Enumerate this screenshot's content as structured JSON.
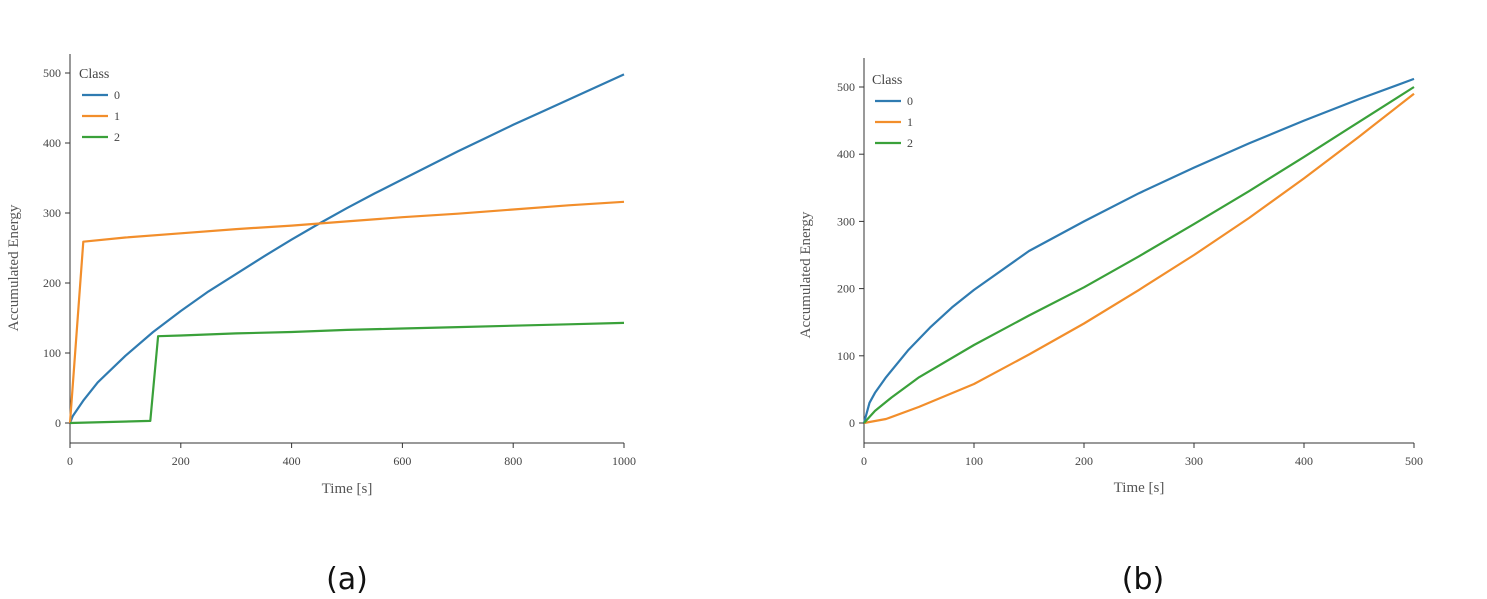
{
  "colors": {
    "class_0": "#2f7bb1",
    "class_1": "#f28e2b",
    "class_2": "#3aa13a"
  },
  "chart_data": [
    {
      "panel_label": "(a)",
      "type": "line",
      "xlabel": "Time [s]",
      "ylabel": "Accumulated Energy",
      "xlim": [
        0,
        1000
      ],
      "ylim": [
        0,
        500
      ],
      "xticks": [
        0,
        200,
        400,
        600,
        800,
        1000
      ],
      "yticks": [
        0,
        100,
        200,
        300,
        400,
        500
      ],
      "legend_title": "Class",
      "legend_position": "top-left",
      "series": [
        {
          "name": "0",
          "color": "#2f7bb1",
          "x": [
            0,
            5,
            25,
            50,
            100,
            150,
            200,
            250,
            300,
            350,
            400,
            450,
            500,
            550,
            600,
            650,
            700,
            750,
            800,
            850,
            900,
            950,
            1000
          ],
          "y": [
            0,
            10,
            33,
            58,
            96,
            130,
            160,
            188,
            213,
            238,
            262,
            285,
            307,
            328,
            348,
            368,
            388,
            407,
            426,
            444,
            462,
            480,
            498
          ]
        },
        {
          "name": "1",
          "color": "#f28e2b",
          "x": [
            0,
            24,
            100,
            200,
            300,
            400,
            500,
            600,
            700,
            800,
            900,
            1000
          ],
          "y": [
            0,
            259,
            265,
            271,
            277,
            282,
            288,
            294,
            299,
            305,
            311,
            316
          ]
        },
        {
          "name": "2",
          "color": "#3aa13a",
          "x": [
            0,
            145,
            159,
            200,
            300,
            400,
            500,
            600,
            700,
            800,
            900,
            1000
          ],
          "y": [
            0,
            3,
            124,
            125,
            128,
            130,
            133,
            135,
            137,
            139,
            141,
            143
          ]
        }
      ]
    },
    {
      "panel_label": "(b)",
      "type": "line",
      "xlabel": "Time [s]",
      "ylabel": "Accumulated Energy",
      "xlim": [
        0,
        500
      ],
      "ylim": [
        0,
        500
      ],
      "xticks": [
        0,
        100,
        200,
        300,
        400,
        500
      ],
      "yticks": [
        0,
        100,
        200,
        300,
        400,
        500
      ],
      "legend_title": "Class",
      "legend_position": "top-left",
      "series": [
        {
          "name": "0",
          "color": "#2f7bb1",
          "x": [
            0,
            5,
            10,
            20,
            40,
            60,
            80,
            100,
            150,
            200,
            250,
            300,
            350,
            400,
            450,
            500
          ],
          "y": [
            0,
            30,
            45,
            68,
            108,
            142,
            172,
            198,
            256,
            300,
            342,
            380,
            416,
            450,
            482,
            512
          ]
        },
        {
          "name": "1",
          "color": "#f28e2b",
          "x": [
            0,
            20,
            50,
            100,
            150,
            200,
            250,
            300,
            350,
            400,
            450,
            500
          ],
          "y": [
            0,
            6,
            24,
            58,
            102,
            148,
            198,
            250,
            305,
            364,
            426,
            490
          ]
        },
        {
          "name": "2",
          "color": "#3aa13a",
          "x": [
            0,
            10,
            25,
            50,
            100,
            150,
            200,
            250,
            300,
            350,
            400,
            450,
            500
          ],
          "y": [
            0,
            18,
            38,
            68,
            116,
            160,
            202,
            248,
            296,
            345,
            396,
            448,
            500
          ]
        }
      ]
    }
  ]
}
